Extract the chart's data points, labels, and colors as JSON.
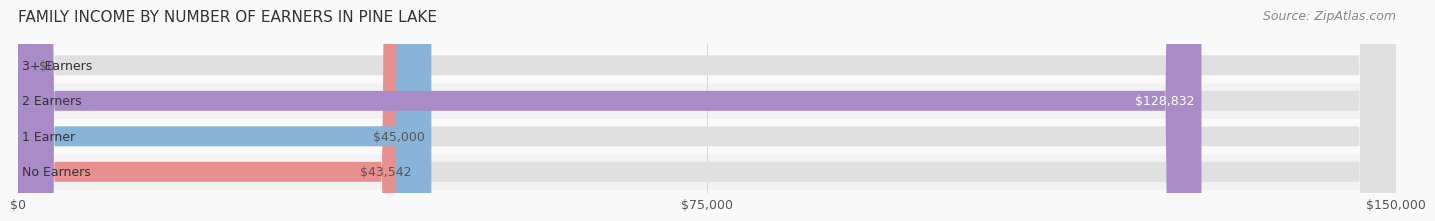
{
  "title": "FAMILY INCOME BY NUMBER OF EARNERS IN PINE LAKE",
  "source": "Source: ZipAtlas.com",
  "categories": [
    "No Earners",
    "1 Earner",
    "2 Earners",
    "3+ Earners"
  ],
  "values": [
    43542,
    45000,
    128832,
    0
  ],
  "bar_colors": [
    "#E89090",
    "#89B4D9",
    "#A98BC8",
    "#7ECECE"
  ],
  "bar_bg_color": "#EFEFEF",
  "value_labels": [
    "$43,542",
    "$45,000",
    "$128,832",
    "$0"
  ],
  "label_colors": [
    "#555555",
    "#555555",
    "#ffffff",
    "#555555"
  ],
  "xlim": [
    0,
    150000
  ],
  "xticks": [
    0,
    75000,
    150000
  ],
  "xtick_labels": [
    "$0",
    "$75,000",
    "$150,000"
  ],
  "title_fontsize": 11,
  "source_fontsize": 9,
  "label_fontsize": 9,
  "value_fontsize": 9,
  "background_color": "#F9F9F9",
  "bar_bg_alpha": 1.0,
  "bar_height": 0.55,
  "row_bg_colors": [
    "#F2F2F2",
    "#FAFAFA",
    "#F2F2F2",
    "#FAFAFA"
  ]
}
